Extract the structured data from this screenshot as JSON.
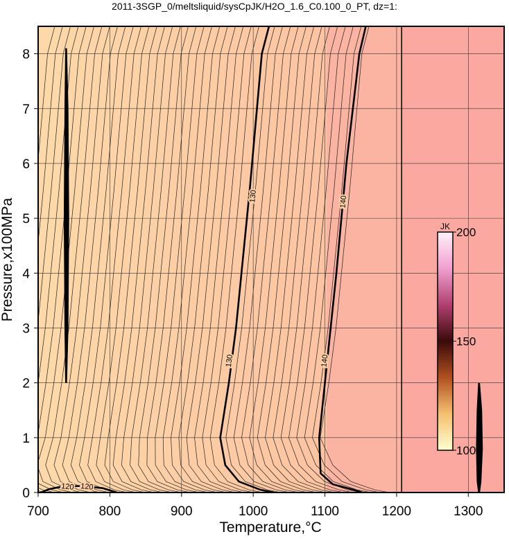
{
  "chart_data": {
    "type": "contour",
    "title": "2011-3SGP_0/meltsliquid/sysCpJK/H2O_1.6_C0.100_0_PT, dz=1:",
    "xlabel": "Temperature,°C",
    "ylabel": "Pressure,x100MPa",
    "xlim": [
      700,
      1350
    ],
    "ylim": [
      0,
      8.5
    ],
    "xticks": [
      700,
      800,
      900,
      1000,
      1100,
      1200,
      1300
    ],
    "yticks": [
      0,
      1,
      2,
      3,
      4,
      5,
      6,
      7,
      8
    ],
    "grid": true,
    "contours": [
      {
        "level": 130,
        "x": [
          1029,
          1010,
          980,
          961,
          954,
          966,
          976,
          995,
          1012,
          1022
        ],
        "y": [
          0,
          0.05,
          0.2,
          0.5,
          1,
          2,
          3,
          5.5,
          8,
          8.5
        ],
        "label_at": [
          [
            967,
            2.4
          ],
          [
            1000,
            5.4
          ]
        ]
      },
      {
        "level": 140,
        "x": [
          1152,
          1140,
          1111,
          1094,
          1092,
          1100,
          1116,
          1130,
          1148,
          1157
        ],
        "y": [
          0,
          0.05,
          0.15,
          0.35,
          1,
          2,
          4,
          6,
          8,
          8.5
        ],
        "label_at": [
          [
            1100,
            2.4
          ],
          [
            1126,
            5.3
          ]
        ]
      },
      {
        "level": 120,
        "x": [
          704,
          715,
          730,
          760,
          790,
          810
        ],
        "y": [
          0,
          0.06,
          0.1,
          0.12,
          0.08,
          0
        ],
        "label_at": [
          [
            741,
            0.1
          ],
          [
            768,
            0.1
          ]
        ]
      },
      {
        "x": [
          739,
          741,
          742,
          741,
          739,
          738,
          737,
          738,
          739
        ],
        "y": [
          2,
          3,
          5,
          7,
          8.1,
          7,
          5,
          3,
          2
        ]
      },
      {
        "x": [
          1315,
          1318,
          1319,
          1317,
          1315,
          1313,
          1312,
          1313,
          1315
        ],
        "y": [
          2,
          1.5,
          0.8,
          0.2,
          0,
          0.2,
          0.8,
          1.5,
          2
        ]
      }
    ],
    "vline": 1207,
    "colorbar": {
      "label": "JK",
      "lim": [
        100,
        200
      ],
      "ticks": [
        100,
        150,
        200
      ],
      "colors": [
        "#ffffd0",
        "#f4c070",
        "#b05020",
        "#3a0a0a",
        "#b04070",
        "#f0a0d0",
        "#fff0fa"
      ]
    }
  }
}
